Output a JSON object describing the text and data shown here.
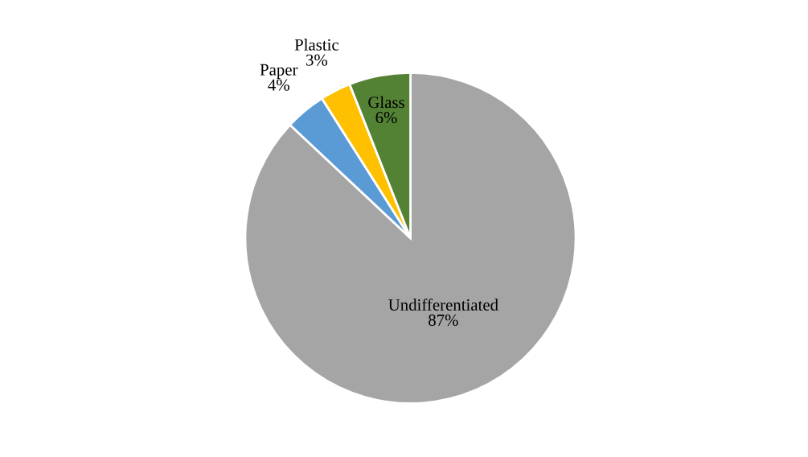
{
  "chart_data": {
    "type": "pie",
    "categories": [
      "Undifferentiated",
      "Paper",
      "Plastic",
      "Glass"
    ],
    "values": [
      87,
      4,
      3,
      6
    ],
    "colors": [
      "#a5a5a5",
      "#5b9bd5",
      "#ffc000",
      "#548235"
    ],
    "value_labels": [
      "87%",
      "4%",
      "3%",
      "6%"
    ]
  }
}
